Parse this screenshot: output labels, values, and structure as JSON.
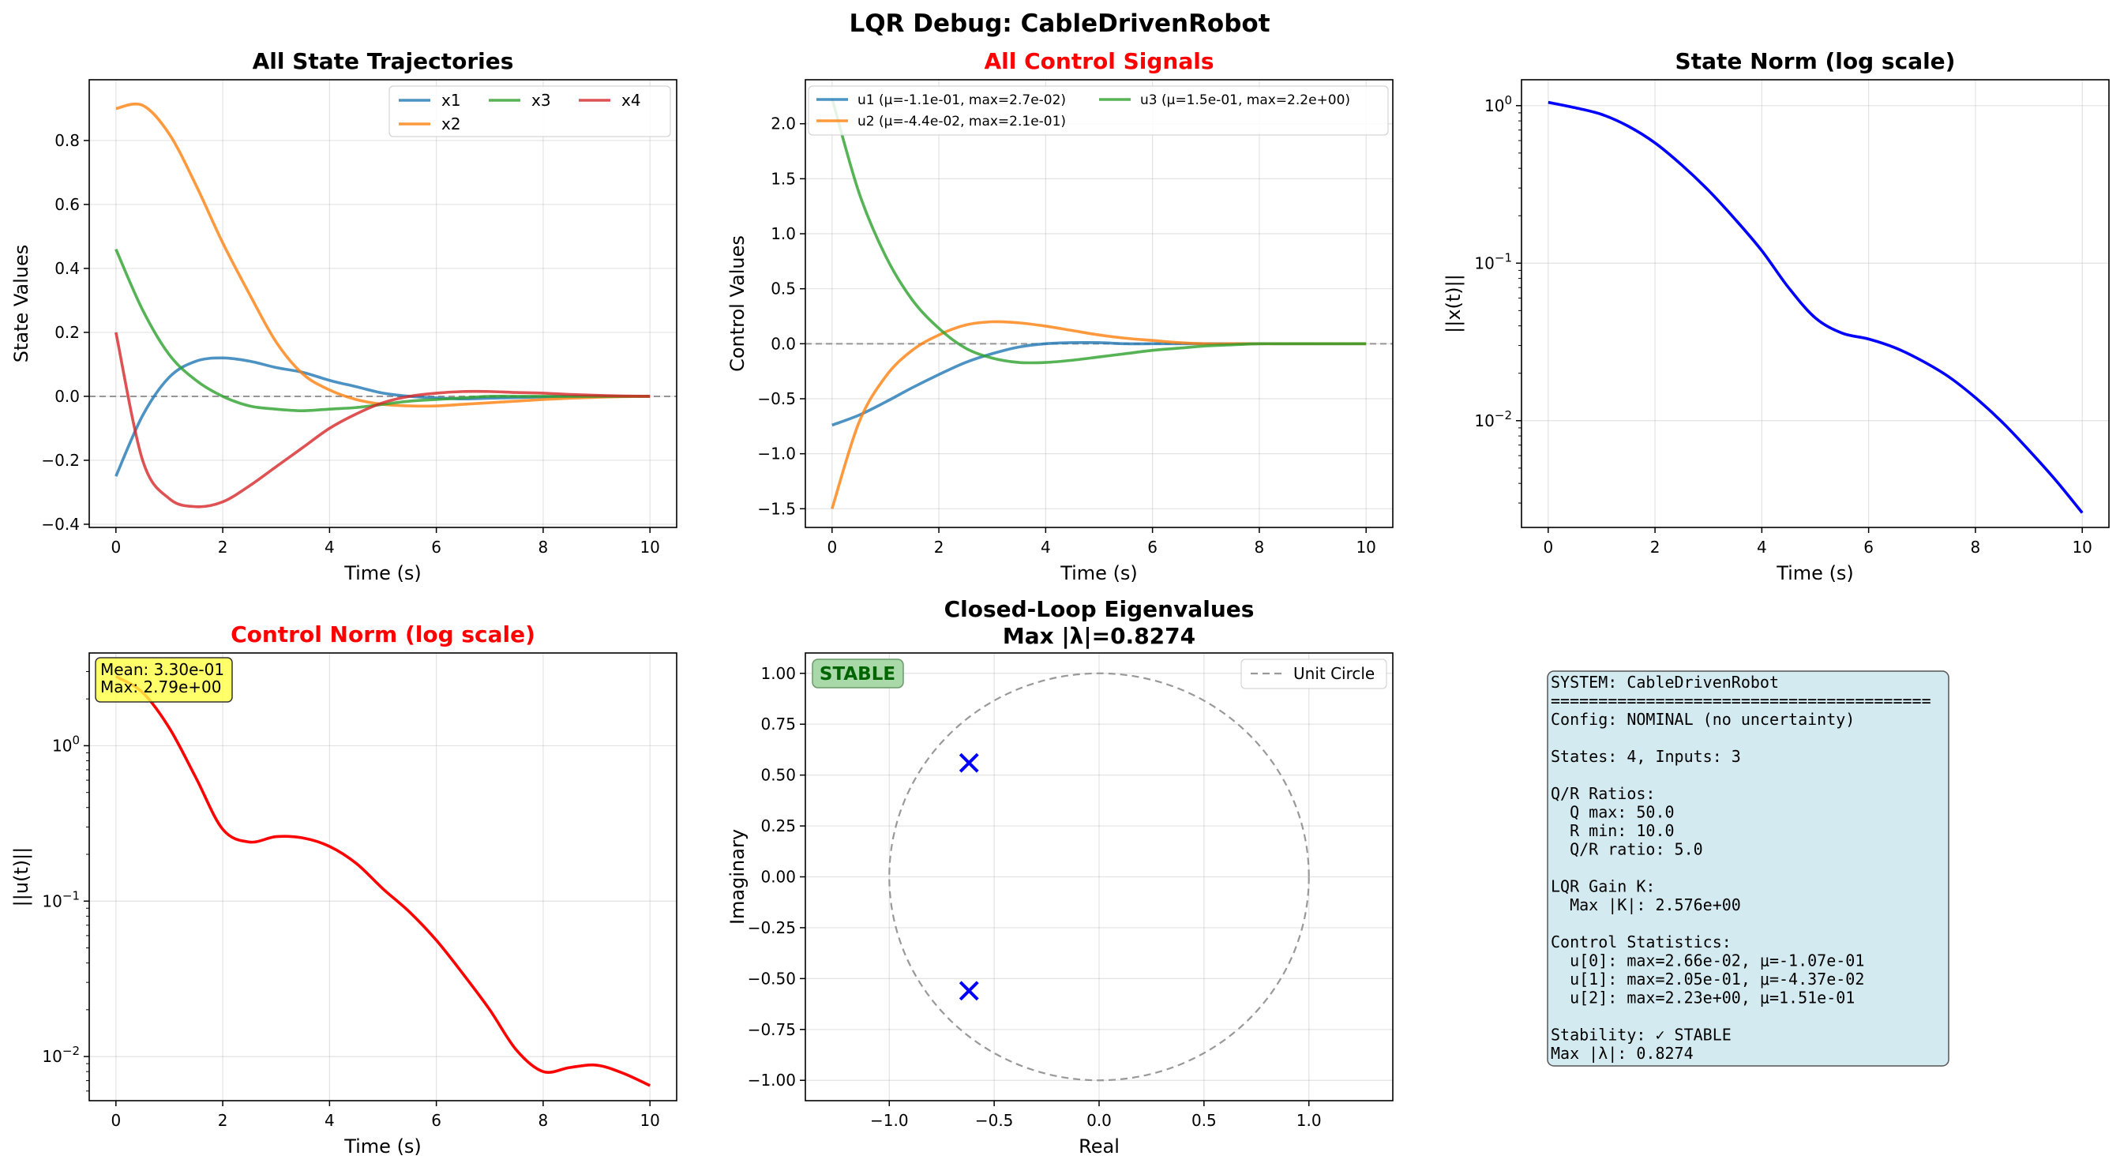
{
  "suptitle": "LQR Debug: CableDrivenRobot",
  "colors": {
    "x1": "#1f77b4",
    "x2": "#ff7f0e",
    "x3": "#2ca02c",
    "x4": "#d62728",
    "u1": "#1f77b4",
    "u2": "#ff7f0e",
    "u3": "#2ca02c",
    "state_norm": "#0000ff",
    "control_norm": "#ff0000",
    "eigen": "#0000ff",
    "unit_circle": "#999999",
    "red_title": "#ff0000",
    "stable_text": "#006400",
    "stable_bg": "#a9d8a9",
    "info_bg": "#d3eaf0",
    "mean_box_bg": "#ffff44"
  },
  "chart_data": [
    {
      "id": "states",
      "type": "line",
      "title": "All State Trajectories",
      "xlabel": "Time (s)",
      "ylabel": "State Values",
      "xlim": [
        -0.5,
        10.5
      ],
      "ylim": [
        -0.41,
        0.99
      ],
      "xticks": [
        "0",
        "2",
        "4",
        "6",
        "8",
        "10"
      ],
      "yticks": [
        "−0.4",
        "−0.2",
        "0.0",
        "0.2",
        "0.4",
        "0.6",
        "0.8"
      ],
      "grid": true,
      "legend_position": "top-right",
      "zero_line": true,
      "x": [
        0,
        0.5,
        1,
        1.5,
        2,
        2.5,
        3,
        3.5,
        4,
        4.5,
        5,
        5.5,
        6,
        6.5,
        7,
        7.5,
        8,
        8.5,
        9,
        9.5,
        10
      ],
      "series": [
        {
          "name": "x1",
          "values": [
            -0.25,
            -0.06,
            0.06,
            0.11,
            0.12,
            0.11,
            0.09,
            0.075,
            0.05,
            0.03,
            0.01,
            0.0,
            -0.005,
            -0.008,
            -0.006,
            -0.004,
            -0.002,
            -0.001,
            0.0,
            0.0,
            0.0
          ]
        },
        {
          "name": "x2",
          "values": [
            0.9,
            0.91,
            0.82,
            0.66,
            0.48,
            0.32,
            0.17,
            0.07,
            0.02,
            -0.01,
            -0.025,
            -0.03,
            -0.03,
            -0.025,
            -0.02,
            -0.015,
            -0.01,
            -0.006,
            -0.003,
            -0.001,
            0.0
          ]
        },
        {
          "name": "x3",
          "values": [
            0.46,
            0.27,
            0.13,
            0.05,
            0.0,
            -0.03,
            -0.04,
            -0.045,
            -0.04,
            -0.035,
            -0.025,
            -0.015,
            -0.01,
            -0.005,
            0.0,
            0.0,
            0.0,
            0.0,
            0.0,
            0.0,
            0.0
          ]
        },
        {
          "name": "x4",
          "values": [
            0.2,
            -0.2,
            -0.32,
            -0.345,
            -0.33,
            -0.28,
            -0.22,
            -0.16,
            -0.1,
            -0.055,
            -0.02,
            0.0,
            0.01,
            0.015,
            0.015,
            0.012,
            0.01,
            0.006,
            0.003,
            0.001,
            0.0
          ]
        }
      ]
    },
    {
      "id": "controls",
      "type": "line",
      "title": "All Control Signals",
      "xlabel": "Time (s)",
      "ylabel": "Control Values",
      "xlim": [
        -0.5,
        10.5
      ],
      "ylim": [
        -1.67,
        2.4
      ],
      "xticks": [
        "0",
        "2",
        "4",
        "6",
        "8",
        "10"
      ],
      "yticks": [
        "−1.5",
        "−1.0",
        "−0.5",
        "0.0",
        "0.5",
        "1.0",
        "1.5",
        "2.0"
      ],
      "grid": true,
      "legend_position": "top",
      "zero_line": true,
      "x": [
        0,
        0.5,
        1,
        1.5,
        2,
        2.5,
        3,
        3.5,
        4,
        4.5,
        5,
        5.5,
        6,
        6.5,
        7,
        7.5,
        8,
        8.5,
        9,
        9.5,
        10
      ],
      "series": [
        {
          "name": "u1 (μ=-1.1e-01, max=2.7e-02)",
          "values": [
            -0.74,
            -0.65,
            -0.53,
            -0.4,
            -0.28,
            -0.17,
            -0.09,
            -0.03,
            0.0,
            0.01,
            0.01,
            0.0,
            0.0,
            0.0,
            0.0,
            0.0,
            0.0,
            0.0,
            0.0,
            0.0,
            0.0
          ]
        },
        {
          "name": "u2 (μ=-4.4e-02, max=2.1e-01)",
          "values": [
            -1.5,
            -0.72,
            -0.3,
            -0.06,
            0.08,
            0.17,
            0.2,
            0.19,
            0.16,
            0.12,
            0.08,
            0.05,
            0.03,
            0.01,
            0.0,
            0.0,
            0.0,
            0.0,
            0.0,
            0.0,
            0.0
          ]
        },
        {
          "name": "u3 (μ=1.5e-01, max=2.2e+00)",
          "values": [
            2.23,
            1.38,
            0.8,
            0.4,
            0.14,
            -0.04,
            -0.13,
            -0.17,
            -0.17,
            -0.15,
            -0.12,
            -0.09,
            -0.06,
            -0.04,
            -0.02,
            -0.01,
            0.0,
            0.0,
            0.0,
            0.0,
            0.0
          ]
        }
      ]
    },
    {
      "id": "state_norm",
      "type": "line",
      "title": "State Norm (log scale)",
      "xlabel": "Time (s)",
      "ylabel": "||x(t)||",
      "log_y": true,
      "xlim": [
        -0.5,
        10.5
      ],
      "ylim": [
        0.0021,
        1.46
      ],
      "xticks": [
        "0",
        "2",
        "4",
        "6",
        "8",
        "10"
      ],
      "yticks": [
        "10^0",
        "10^-1",
        "10^-2"
      ],
      "grid": true,
      "x": [
        0,
        0.5,
        1,
        1.5,
        2,
        2.5,
        3,
        3.5,
        4,
        4.5,
        5,
        5.5,
        6,
        6.5,
        7,
        7.5,
        8,
        8.5,
        9,
        9.5,
        10
      ],
      "series": [
        {
          "name": "",
          "values": [
            1.05,
            0.97,
            0.88,
            0.74,
            0.58,
            0.42,
            0.29,
            0.19,
            0.12,
            0.07,
            0.045,
            0.036,
            0.033,
            0.029,
            0.024,
            0.019,
            0.014,
            0.0098,
            0.0065,
            0.0042,
            0.0026
          ]
        }
      ]
    },
    {
      "id": "control_norm",
      "type": "line",
      "title": "Control Norm (log scale)",
      "xlabel": "Time (s)",
      "ylabel": "||u(t)||",
      "log_y": true,
      "xlim": [
        -0.5,
        10.5
      ],
      "ylim": [
        0.0052,
        3.95
      ],
      "xticks": [
        "0",
        "2",
        "4",
        "6",
        "8",
        "10"
      ],
      "yticks": [
        "10^0",
        "10^-1",
        "10^-2"
      ],
      "grid": true,
      "annotation": [
        "Mean: 3.30e-01",
        "Max: 2.79e+00"
      ],
      "x": [
        0,
        0.5,
        1,
        1.5,
        2,
        2.5,
        3,
        3.5,
        4,
        4.5,
        5,
        5.5,
        6,
        6.5,
        7,
        7.5,
        8,
        8.5,
        9,
        9.5,
        10
      ],
      "series": [
        {
          "name": "",
          "values": [
            2.79,
            2.2,
            1.3,
            0.62,
            0.29,
            0.24,
            0.26,
            0.255,
            0.225,
            0.175,
            0.12,
            0.085,
            0.056,
            0.034,
            0.02,
            0.011,
            0.008,
            0.0085,
            0.0088,
            0.0078,
            0.0065
          ]
        }
      ]
    },
    {
      "id": "eigen",
      "type": "scatter",
      "title": "Closed-Loop Eigenvalues",
      "subtitle": "Max |λ|=0.8274",
      "xlabel": "Real",
      "ylabel": "Imaginary",
      "xlim": [
        -1.4,
        1.4
      ],
      "ylim": [
        -1.1,
        1.1
      ],
      "xticks": [
        "−1.0",
        "−0.5",
        "0.0",
        "0.5",
        "1.0"
      ],
      "yticks": [
        "−1.00",
        "−0.75",
        "−0.50",
        "−0.25",
        "0.00",
        "0.25",
        "0.50",
        "0.75",
        "1.00"
      ],
      "grid": true,
      "legend_position": "top-right",
      "badge": "STABLE",
      "unit_circle_label": "Unit Circle",
      "points": [
        {
          "x": -0.62,
          "y": 0.56
        },
        {
          "x": -0.62,
          "y": -0.56
        }
      ]
    }
  ],
  "info_panel": {
    "lines": [
      "SYSTEM: CableDrivenRobot",
      "========================================",
      "Config: NOMINAL (no uncertainty)",
      "",
      "States: 4, Inputs: 3",
      "",
      "Q/R Ratios:",
      "  Q max: 50.0",
      "  R min: 10.0",
      "  Q/R ratio: 5.0",
      "",
      "LQR Gain K:",
      "  Max |K|: 2.576e+00",
      "",
      "Control Statistics:",
      "  u[0]: max=2.66e-02, μ=-1.07e-01",
      "  u[1]: max=2.05e-01, μ=-4.37e-02",
      "  u[2]: max=2.23e+00, μ=1.51e-01",
      "",
      "Stability: ✓ STABLE",
      "Max |λ|: 0.8274"
    ]
  }
}
